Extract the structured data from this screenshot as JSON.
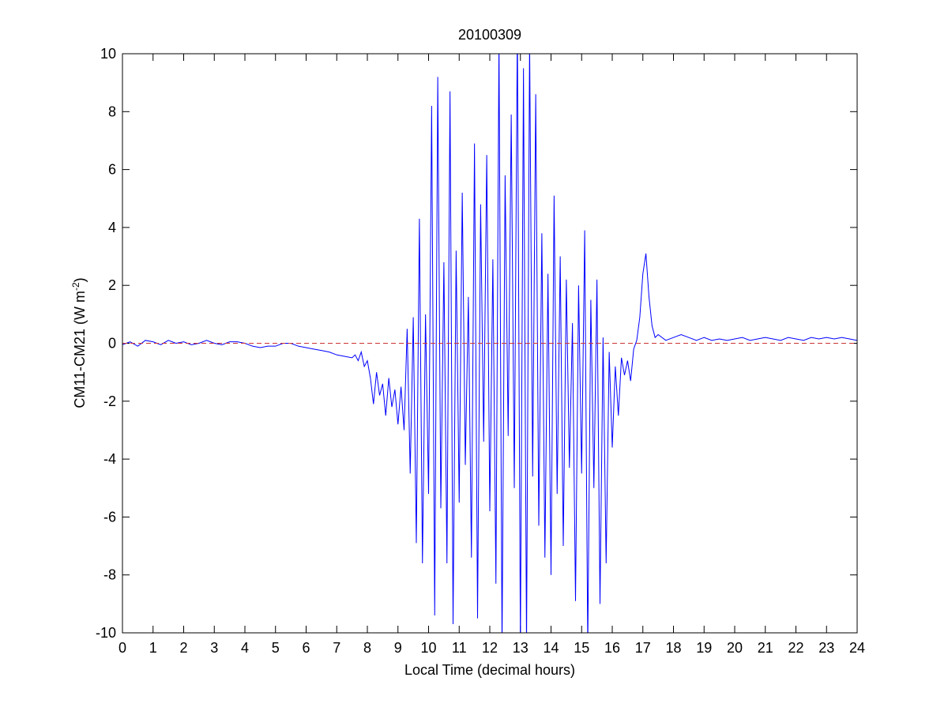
{
  "chart_data": {
    "type": "line",
    "title": "20100309",
    "xlabel": "Local Time (decimal hours)",
    "ylabel": {
      "text": "CM11-CM21 (W m",
      "superscript": "-2",
      "suffix": ")"
    },
    "xlim": [
      0,
      24
    ],
    "ylim": [
      -10,
      10
    ],
    "xticks": [
      0,
      1,
      2,
      3,
      4,
      5,
      6,
      7,
      8,
      9,
      10,
      11,
      12,
      13,
      14,
      15,
      16,
      17,
      18,
      19,
      20,
      21,
      22,
      23,
      24
    ],
    "yticks": [
      -10,
      -8,
      -6,
      -4,
      -2,
      0,
      2,
      4,
      6,
      8,
      10
    ],
    "grid": false,
    "box": true,
    "reference_line": {
      "value": 0,
      "color": "#cc3333",
      "style": "dashed"
    },
    "x": [
      0,
      0.25,
      0.5,
      0.75,
      1,
      1.25,
      1.5,
      1.75,
      2,
      2.25,
      2.5,
      2.75,
      3,
      3.25,
      3.5,
      3.75,
      4,
      4.25,
      4.5,
      4.75,
      5,
      5.25,
      5.5,
      5.75,
      6,
      6.25,
      6.5,
      6.75,
      7,
      7.25,
      7.5,
      7.6,
      7.7,
      7.8,
      7.9,
      8.0,
      8.1,
      8.2,
      8.3,
      8.4,
      8.5,
      8.6,
      8.7,
      8.8,
      8.9,
      9.0,
      9.1,
      9.2,
      9.3,
      9.4,
      9.5,
      9.6,
      9.7,
      9.8,
      9.9,
      10.0,
      10.1,
      10.2,
      10.3,
      10.4,
      10.5,
      10.6,
      10.7,
      10.8,
      10.9,
      11.0,
      11.1,
      11.2,
      11.3,
      11.4,
      11.5,
      11.6,
      11.7,
      11.8,
      11.9,
      12.0,
      12.1,
      12.2,
      12.3,
      12.4,
      12.5,
      12.6,
      12.7,
      12.8,
      12.9,
      13.0,
      13.1,
      13.2,
      13.3,
      13.4,
      13.5,
      13.6,
      13.7,
      13.8,
      13.9,
      14.0,
      14.1,
      14.2,
      14.3,
      14.4,
      14.5,
      14.6,
      14.7,
      14.8,
      14.9,
      15.0,
      15.1,
      15.2,
      15.3,
      15.4,
      15.5,
      15.6,
      15.7,
      15.8,
      15.9,
      16.0,
      16.1,
      16.2,
      16.3,
      16.4,
      16.5,
      16.6,
      16.7,
      16.8,
      16.9,
      17.0,
      17.1,
      17.2,
      17.3,
      17.4,
      17.5,
      17.75,
      18,
      18.25,
      18.5,
      18.75,
      19,
      19.25,
      19.5,
      19.75,
      20,
      20.25,
      20.5,
      20.75,
      21,
      21.25,
      21.5,
      21.75,
      22,
      22.25,
      22.5,
      22.75,
      23,
      23.25,
      23.5,
      23.75,
      24
    ],
    "series": [
      {
        "color": "#0000ff",
        "values": [
          -0.05,
          0.05,
          -0.1,
          0.1,
          0.05,
          -0.05,
          0.1,
          0,
          0.05,
          -0.05,
          0,
          0.1,
          0,
          -0.05,
          0.05,
          0.05,
          0,
          -0.1,
          -0.15,
          -0.1,
          -0.1,
          0,
          0,
          -0.1,
          -0.15,
          -0.2,
          -0.25,
          -0.3,
          -0.4,
          -0.45,
          -0.5,
          -0.4,
          -0.6,
          -0.3,
          -0.8,
          -0.6,
          -1.2,
          -2.1,
          -1.0,
          -1.8,
          -1.4,
          -2.5,
          -1.2,
          -2.2,
          -1.6,
          -2.8,
          -1.5,
          -3.0,
          0.5,
          -4.5,
          0.9,
          -6.9,
          4.3,
          -7.6,
          1.0,
          -5.2,
          8.2,
          -9.4,
          9.2,
          -5.7,
          2.8,
          -7.6,
          8.7,
          -9.7,
          3.2,
          -5.5,
          5.2,
          -4.2,
          1.6,
          -7.4,
          6.9,
          -9.5,
          4.8,
          -3.4,
          6.5,
          -5.8,
          2.9,
          -8.3,
          10.5,
          -10.5,
          5.8,
          -3.2,
          7.9,
          -5.0,
          11,
          -10.5,
          9.5,
          -10.5,
          10.5,
          -4.6,
          8.6,
          -6.3,
          3.8,
          -7.4,
          2.4,
          -8.0,
          5.1,
          -5.2,
          3.0,
          -7.0,
          2.2,
          -4.3,
          0.7,
          -8.9,
          2.0,
          -4.5,
          3.9,
          -10.5,
          1.5,
          -5.0,
          2.2,
          -9.0,
          0.2,
          -7.6,
          -0.3,
          -3.6,
          -0.8,
          -2.5,
          -0.5,
          -1.1,
          -0.6,
          -1.3,
          -0.2,
          0.1,
          0.9,
          2.4,
          3.1,
          1.6,
          0.6,
          0.2,
          0.3,
          0.1,
          0.2,
          0.3,
          0.2,
          0.1,
          0.2,
          0.1,
          0.15,
          0.1,
          0.15,
          0.2,
          0.1,
          0.15,
          0.2,
          0.15,
          0.1,
          0.2,
          0.15,
          0.1,
          0.2,
          0.15,
          0.2,
          0.15,
          0.2,
          0.15,
          0.1
        ]
      }
    ]
  }
}
